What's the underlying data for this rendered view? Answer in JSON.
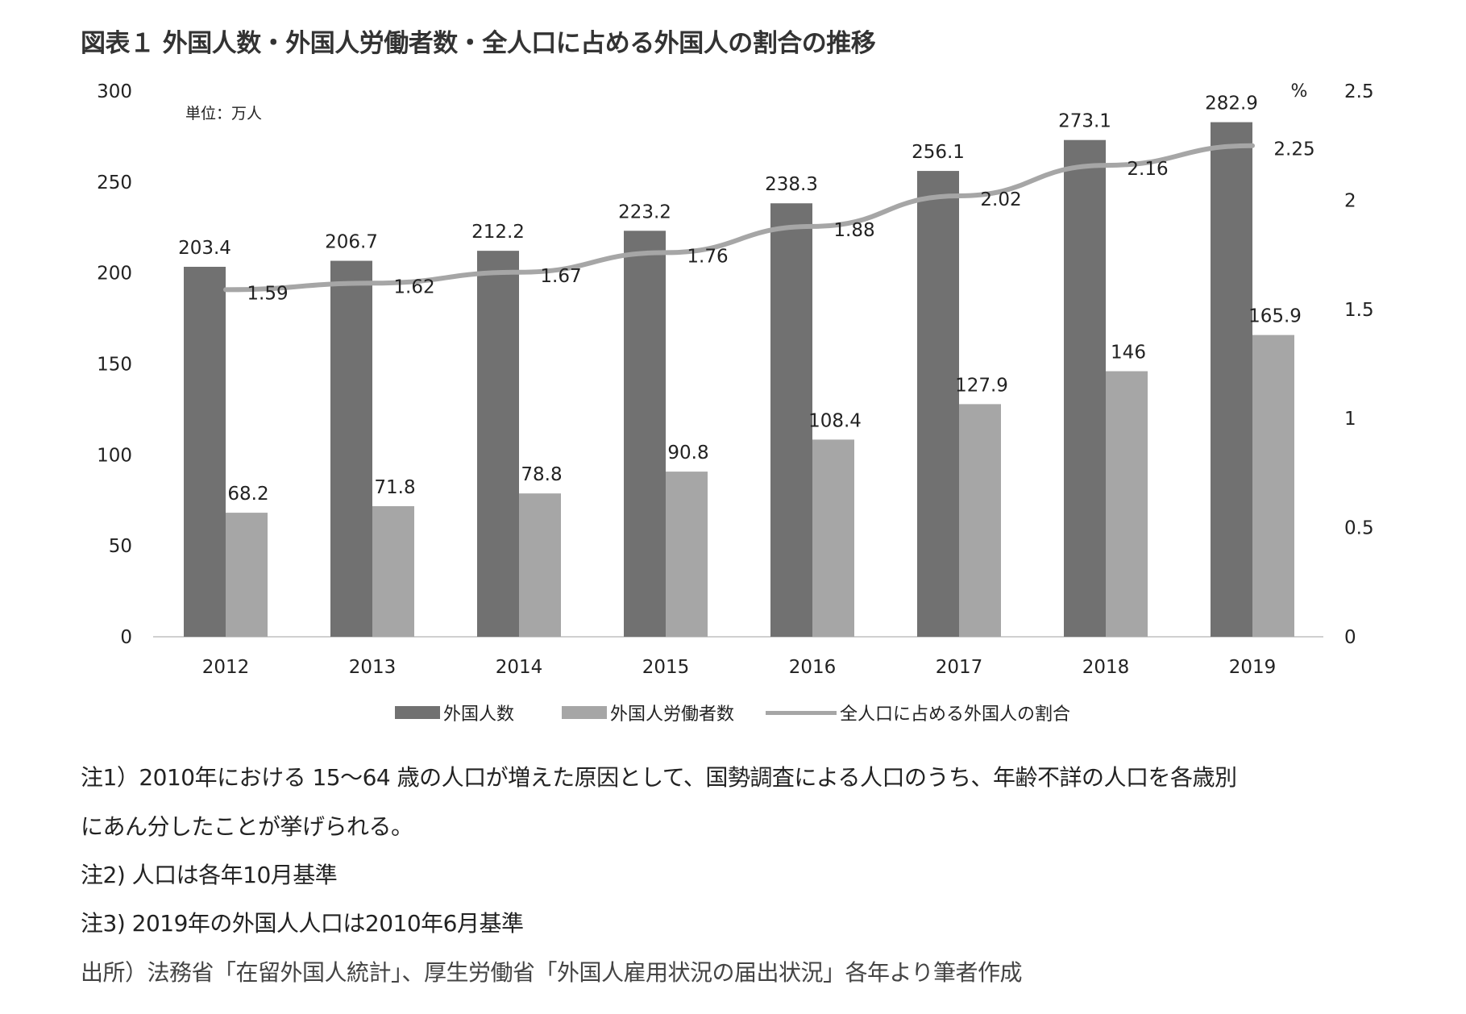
{
  "title": "図表１ 外国人数・外国人労働者数・全人口に占める外国人の割合の推移",
  "unit_label": "単位：万人",
  "colors": {
    "foreigners": "#717171",
    "workers": "#a6a6a6",
    "ratio": "#a6a6a6"
  },
  "chart_data": {
    "type": "bar",
    "categories": [
      "2012",
      "2013",
      "2014",
      "2015",
      "2016",
      "2017",
      "2018",
      "2019"
    ],
    "series": [
      {
        "name": "外国人数",
        "type": "bar",
        "axis": "left",
        "values": [
          203.4,
          206.7,
          212.2,
          223.2,
          238.3,
          256.1,
          273.1,
          282.9
        ],
        "labels": [
          "203.4",
          "206.7",
          "212.2",
          "223.2",
          "238.3",
          "256.1",
          "273.1",
          "282.9"
        ]
      },
      {
        "name": "外国人労働者数",
        "type": "bar",
        "axis": "left",
        "values": [
          68.2,
          71.8,
          78.8,
          90.8,
          108.4,
          127.9,
          146,
          165.9
        ],
        "labels": [
          "68.2",
          "71.8",
          "78.8",
          "90.8",
          "108.4",
          "127.9",
          "146",
          "165.9"
        ]
      },
      {
        "name": "全人口に占める外国人の割合",
        "type": "line",
        "axis": "right",
        "values": [
          1.59,
          1.62,
          1.67,
          1.76,
          1.88,
          2.02,
          2.16,
          2.25
        ],
        "labels": [
          "1.59",
          "1.62",
          "1.67",
          "1.76",
          "1.88",
          "2.02",
          "2.16",
          "2.25"
        ]
      }
    ],
    "ylim": [
      0,
      300
    ],
    "y_ticks": [
      "0",
      "50",
      "100",
      "150",
      "200",
      "250",
      "300"
    ],
    "y2lim": [
      0,
      2.5
    ],
    "y2_ticks": [
      "0",
      "0.5",
      "1",
      "1.5",
      "2",
      "2.5"
    ],
    "y2label": "%",
    "grid": false,
    "legend_position": "bottom"
  },
  "notes": [
    "注1）2010年における 15～64 歳の人口が増えた原因として、国勢調査による人口のうち、年齢不詳の人口を各歳別",
    "にあん分したことが挙げられる。",
    "注2) 人口は各年10月基準",
    "注3) 2019年の外国人人口は2010年6月基準",
    "出所）法務省「在留外国人統計」、厚生労働省「外国人雇用状況の届出状況」各年より筆者作成"
  ]
}
